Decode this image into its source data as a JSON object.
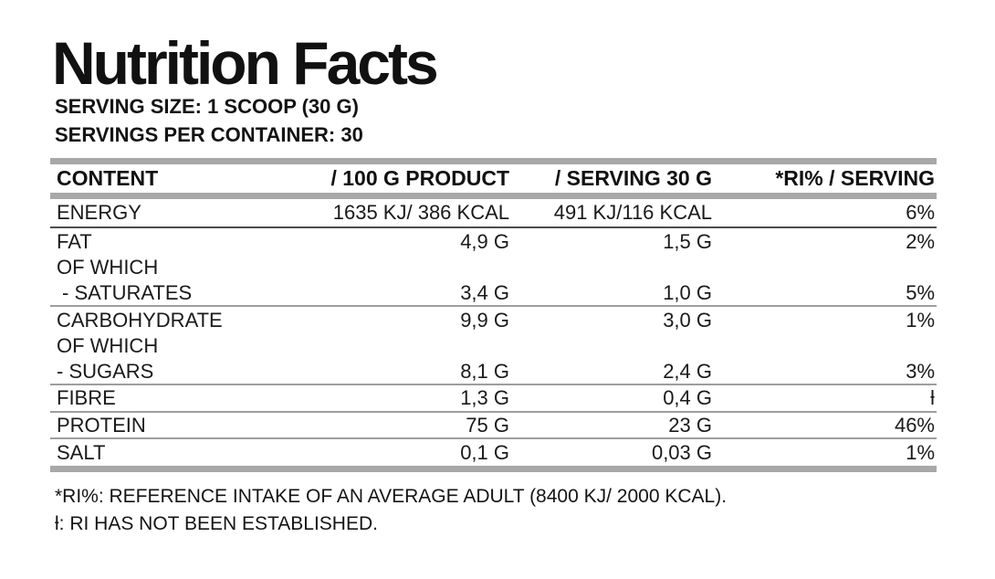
{
  "title": "Nutrition Facts",
  "serving_size": "SERVING SIZE: 1 SCOOP (30 G)",
  "servings_per_container": "SERVINGS PER CONTAINER: 30",
  "table": {
    "headers": [
      "CONTENT",
      "/ 100 G PRODUCT",
      "/ SERVING 30 G",
      "*RI% / SERVING"
    ],
    "rows": [
      {
        "content": "ENERGY",
        "per100": "1635 KJ/ 386 KCAL",
        "perServing": "491 KJ/116 KCAL",
        "ri": "6%",
        "divider": "strong",
        "indent": false
      },
      {
        "content": "FAT",
        "per100": "4,9 G",
        "perServing": "1,5 G",
        "ri": "2%",
        "divider": "none",
        "indent": false
      },
      {
        "content": "OF WHICH",
        "per100": "",
        "perServing": "",
        "ri": "",
        "divider": "none",
        "indent": false
      },
      {
        "content": "- SATURATES",
        "per100": "3,4 G",
        "perServing": "1,0 G",
        "ri": "5%",
        "divider": "line",
        "indent": true
      },
      {
        "content": "CARBOHYDRATE",
        "per100": "9,9 G",
        "perServing": "3,0 G",
        "ri": "1%",
        "divider": "none",
        "indent": false
      },
      {
        "content": "OF WHICH",
        "per100": "",
        "perServing": "",
        "ri": "",
        "divider": "none",
        "indent": false
      },
      {
        "content": "- SUGARS",
        "per100": "8,1 G",
        "perServing": "2,4 G",
        "ri": "3%",
        "divider": "line",
        "indent": false
      },
      {
        "content": "FIBRE",
        "per100": "1,3 G",
        "perServing": "0,4 G",
        "ri": "ƚ",
        "divider": "line",
        "indent": false
      },
      {
        "content": "PROTEIN",
        "per100": "75 G",
        "perServing": "23 G",
        "ri": "46%",
        "divider": "line",
        "indent": false
      },
      {
        "content": "SALT",
        "per100": "0,1 G",
        "perServing": "0,03 G",
        "ri": "1%",
        "divider": "none",
        "indent": false
      }
    ]
  },
  "footnotes": {
    "reference_intake": "*RI%: REFERENCE INTAKE OF AN AVERAGE ADULT (8400 KJ/ 2000 KCAL).",
    "not_established": "ƚ: RI HAS NOT BEEN ESTABLISHED."
  },
  "colors": {
    "text": "#151515",
    "bar": "#a8a8a8",
    "divider": "#9e9e9e",
    "divider_strong": "#4d4d4d"
  }
}
